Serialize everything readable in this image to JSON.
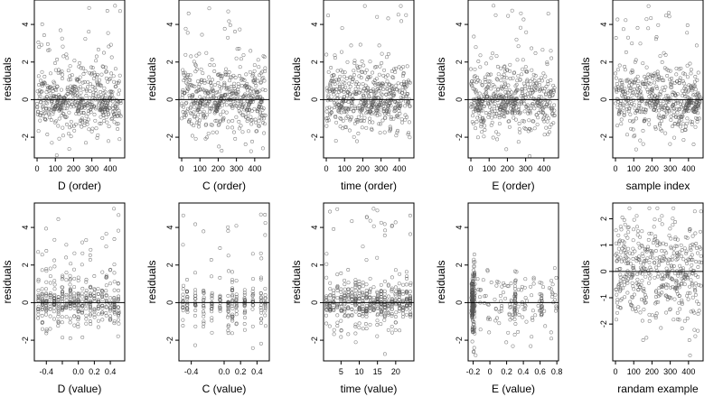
{
  "chart_data": [
    {
      "type": "scatter",
      "xlabel": "D (order)",
      "ylabel": "residuals",
      "xlim": [
        -15,
        480
      ],
      "ylim": [
        -3.1,
        5.3
      ],
      "xticks": [
        0,
        100,
        200,
        300,
        400
      ],
      "yticks": [
        -2,
        0,
        2,
        4
      ],
      "reference_line": 0,
      "cluster": "order",
      "seed": 11
    },
    {
      "type": "scatter",
      "xlabel": "C (order)",
      "ylabel": "residuals",
      "xlim": [
        -15,
        480
      ],
      "ylim": [
        -3.1,
        5.3
      ],
      "xticks": [
        0,
        100,
        200,
        300,
        400
      ],
      "yticks": [
        -2,
        0,
        2,
        4
      ],
      "reference_line": 0,
      "cluster": "order",
      "seed": 23
    },
    {
      "type": "scatter",
      "xlabel": "time (order)",
      "ylabel": "residuals",
      "xlim": [
        -15,
        480
      ],
      "ylim": [
        -3.1,
        5.3
      ],
      "xticks": [
        0,
        100,
        200,
        300,
        400
      ],
      "yticks": [
        -2,
        0,
        2,
        4
      ],
      "reference_line": 0,
      "cluster": "order",
      "seed": 37
    },
    {
      "type": "scatter",
      "xlabel": "E (order)",
      "ylabel": "residuals",
      "xlim": [
        -15,
        480
      ],
      "ylim": [
        -3.1,
        5.3
      ],
      "xticks": [
        0,
        100,
        200,
        300,
        400
      ],
      "yticks": [
        -2,
        0,
        2,
        4
      ],
      "reference_line": 0,
      "cluster": "order",
      "seed": 41
    },
    {
      "type": "scatter",
      "xlabel": "sample index",
      "ylabel": "residuals",
      "xlim": [
        -15,
        480
      ],
      "ylim": [
        -3.1,
        5.3
      ],
      "xticks": [
        0,
        100,
        200,
        300,
        400
      ],
      "yticks": [
        -2,
        0,
        2,
        4
      ],
      "reference_line": 0,
      "cluster": "order",
      "seed": 53
    },
    {
      "type": "scatter",
      "xlabel": "D (value)",
      "ylabel": "residuals",
      "xlim": [
        -0.55,
        0.58
      ],
      "ylim": [
        -3.1,
        5.3
      ],
      "xticks": [
        -0.4,
        -0.2,
        0.0,
        0.2,
        0.4
      ],
      "xtick_labels": [
        "-0.4",
        "",
        "0.0",
        "0.2",
        "0.4"
      ],
      "yticks": [
        -2,
        0,
        2,
        4
      ],
      "reference_line": 0,
      "cluster": "bands",
      "bands": [
        -0.5,
        -0.45,
        -0.4,
        -0.35,
        -0.3,
        -0.25,
        -0.2,
        -0.15,
        -0.1,
        -0.05,
        0.0,
        0.05,
        0.1,
        0.15,
        0.2,
        0.25,
        0.3,
        0.35,
        0.4,
        0.45,
        0.5
      ],
      "seed": 61
    },
    {
      "type": "scatter",
      "xlabel": "C (value)",
      "ylabel": "residuals",
      "xlim": [
        -0.55,
        0.55
      ],
      "ylim": [
        -3.1,
        5.3
      ],
      "xticks": [
        -0.4,
        0.0,
        0.2,
        0.4
      ],
      "xtick_labels": [
        "-0.4",
        "0.0",
        "0.2",
        "0.4"
      ],
      "yticks": [
        -2,
        0,
        2,
        4
      ],
      "reference_line": 0,
      "cluster": "bands",
      "bands": [
        -0.5,
        -0.45,
        -0.35,
        -0.25,
        -0.15,
        -0.05,
        0.05,
        0.1,
        0.15,
        0.25,
        0.35,
        0.45,
        0.5
      ],
      "seed": 71
    },
    {
      "type": "scatter",
      "xlabel": "time (value)",
      "ylabel": "residuals",
      "xlim": [
        0.2,
        25
      ],
      "ylim": [
        -3.1,
        5.3
      ],
      "xticks": [
        5,
        10,
        15,
        20
      ],
      "yticks": [
        -2,
        0,
        2,
        4
      ],
      "reference_line": 0,
      "cluster": "bands",
      "bands": [
        1,
        2,
        3,
        4,
        5,
        6,
        7,
        8,
        9,
        10,
        11,
        12,
        13,
        14,
        15,
        16,
        17,
        18,
        19,
        20,
        21,
        22,
        23,
        24
      ],
      "seed": 83
    },
    {
      "type": "scatter",
      "xlabel": "E (value)",
      "ylabel": "residuals",
      "xlim": [
        -0.26,
        0.82
      ],
      "ylim": [
        -3.1,
        5.3
      ],
      "xticks": [
        -0.2,
        0.0,
        0.2,
        0.4,
        0.6,
        0.8
      ],
      "yticks": [
        -2,
        0,
        2,
        4
      ],
      "reference_line": 0,
      "cluster": "skew",
      "bands": [
        -0.21,
        -0.19,
        0.3,
        0.62
      ],
      "seed": 97
    },
    {
      "type": "scatter",
      "xlabel": "randam example",
      "ylabel": "residuals",
      "xlim": [
        -15,
        480
      ],
      "ylim": [
        -3.4,
        2.6
      ],
      "xticks": [
        0,
        100,
        200,
        300,
        400
      ],
      "yticks": [
        -2,
        -1,
        0,
        1,
        2
      ],
      "reference_line": 0,
      "cluster": "random",
      "seed": 101
    }
  ],
  "style": {
    "point_color": "#555555",
    "line_color": "#000000",
    "frame_color": "#000000"
  }
}
